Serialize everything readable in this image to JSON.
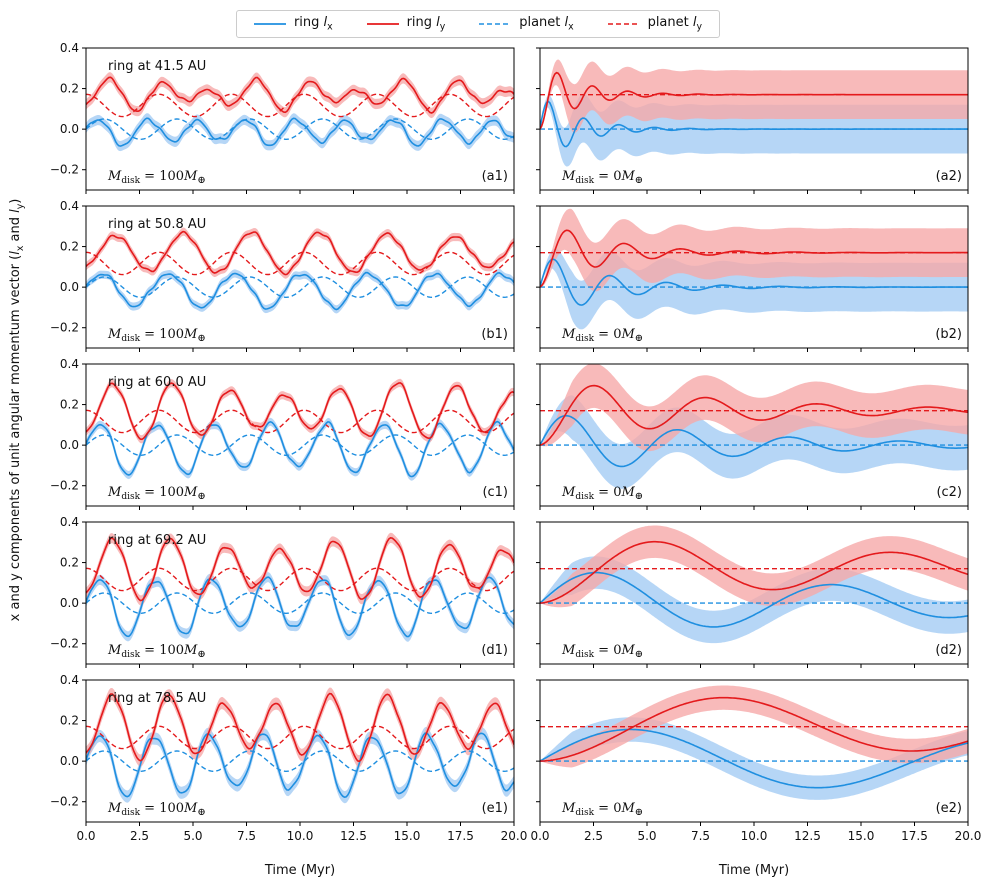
{
  "legend": {
    "items": [
      {
        "label": "ring l_x",
        "color": "#1f8fe0",
        "dash": false
      },
      {
        "label": "ring l_y",
        "color": "#e41a1c",
        "dash": false
      },
      {
        "label": "planet l_x",
        "color": "#1f8fe0",
        "dash": true
      },
      {
        "label": "planet l_y",
        "color": "#e41a1c",
        "dash": true
      }
    ]
  },
  "figure": {
    "ylabel": "x and y components of unit angular momentum vector (l_x and l_y)",
    "xlabel": "Time (Myr)",
    "colors": {
      "blue": "#1f8fe0",
      "red": "#e41a1c",
      "blue_band": "#a9cff4",
      "red_band": "#f6a9a9"
    }
  },
  "chart_data": {
    "type": "line",
    "xlim": [
      0,
      20
    ],
    "ylim": [
      -0.3,
      0.4
    ],
    "xticks": [
      "0.0",
      "2.5",
      "5.0",
      "7.5",
      "10.0",
      "12.5",
      "15.0",
      "17.5",
      "20.0"
    ],
    "yticks": [
      "-0.2",
      "0.0",
      "0.2",
      "0.4"
    ],
    "planet_lx": 0.0,
    "planet_ly": 0.17,
    "panels": [
      {
        "id": "a1",
        "row": 0,
        "col": 0,
        "ring_label": "ring at 41.5 AU",
        "mass": "100",
        "tag": "(a1)",
        "period": 2.3,
        "amp": 0.055,
        "planet_osc": 0.055,
        "band": 0.025
      },
      {
        "id": "a2",
        "row": 0,
        "col": 1,
        "ring_label": "",
        "mass": "0",
        "tag": "(a2)",
        "period": 1.65,
        "decay": 1.8,
        "band": 0.12
      },
      {
        "id": "b1",
        "row": 1,
        "col": 0,
        "ring_label": "ring at 50.8 AU",
        "mass": "100",
        "tag": "(b1)",
        "period": 3.1,
        "amp": 0.075,
        "planet_osc": 0.055,
        "band": 0.02
      },
      {
        "id": "b2",
        "row": 1,
        "col": 1,
        "ring_label": "",
        "mass": "0",
        "tag": "(b2)",
        "period": 2.65,
        "decay": 3.0,
        "band": 0.12
      },
      {
        "id": "c1",
        "row": 2,
        "col": 0,
        "ring_label": "ring at 60.0 AU",
        "mass": "100",
        "tag": "(c1)",
        "period": 2.65,
        "amp": 0.115,
        "planet_osc": 0.055,
        "band": 0.02
      },
      {
        "id": "c2",
        "row": 2,
        "col": 1,
        "ring_label": "",
        "mass": "0",
        "tag": "(c2)",
        "period": 5.2,
        "decay": 8.0,
        "band": 0.11
      },
      {
        "id": "d1",
        "row": 3,
        "col": 0,
        "ring_label": "ring at 69.2 AU",
        "mass": "100",
        "tag": "(d1)",
        "period": 2.6,
        "amp": 0.13,
        "planet_osc": 0.055,
        "band": 0.025
      },
      {
        "id": "d2",
        "row": 3,
        "col": 1,
        "ring_label": "",
        "mass": "0",
        "tag": "(d2)",
        "period": 11.0,
        "decay": 22.0,
        "band": 0.08
      },
      {
        "id": "e1",
        "row": 4,
        "col": 0,
        "ring_label": "ring at 78.5 AU",
        "mass": "100",
        "tag": "(e1)",
        "period": 2.55,
        "amp": 0.14,
        "planet_osc": 0.055,
        "band": 0.03
      },
      {
        "id": "e2",
        "row": 4,
        "col": 1,
        "ring_label": "",
        "mass": "0",
        "tag": "(e2)",
        "period": 17.5,
        "decay": 50.0,
        "band": 0.06
      }
    ]
  }
}
